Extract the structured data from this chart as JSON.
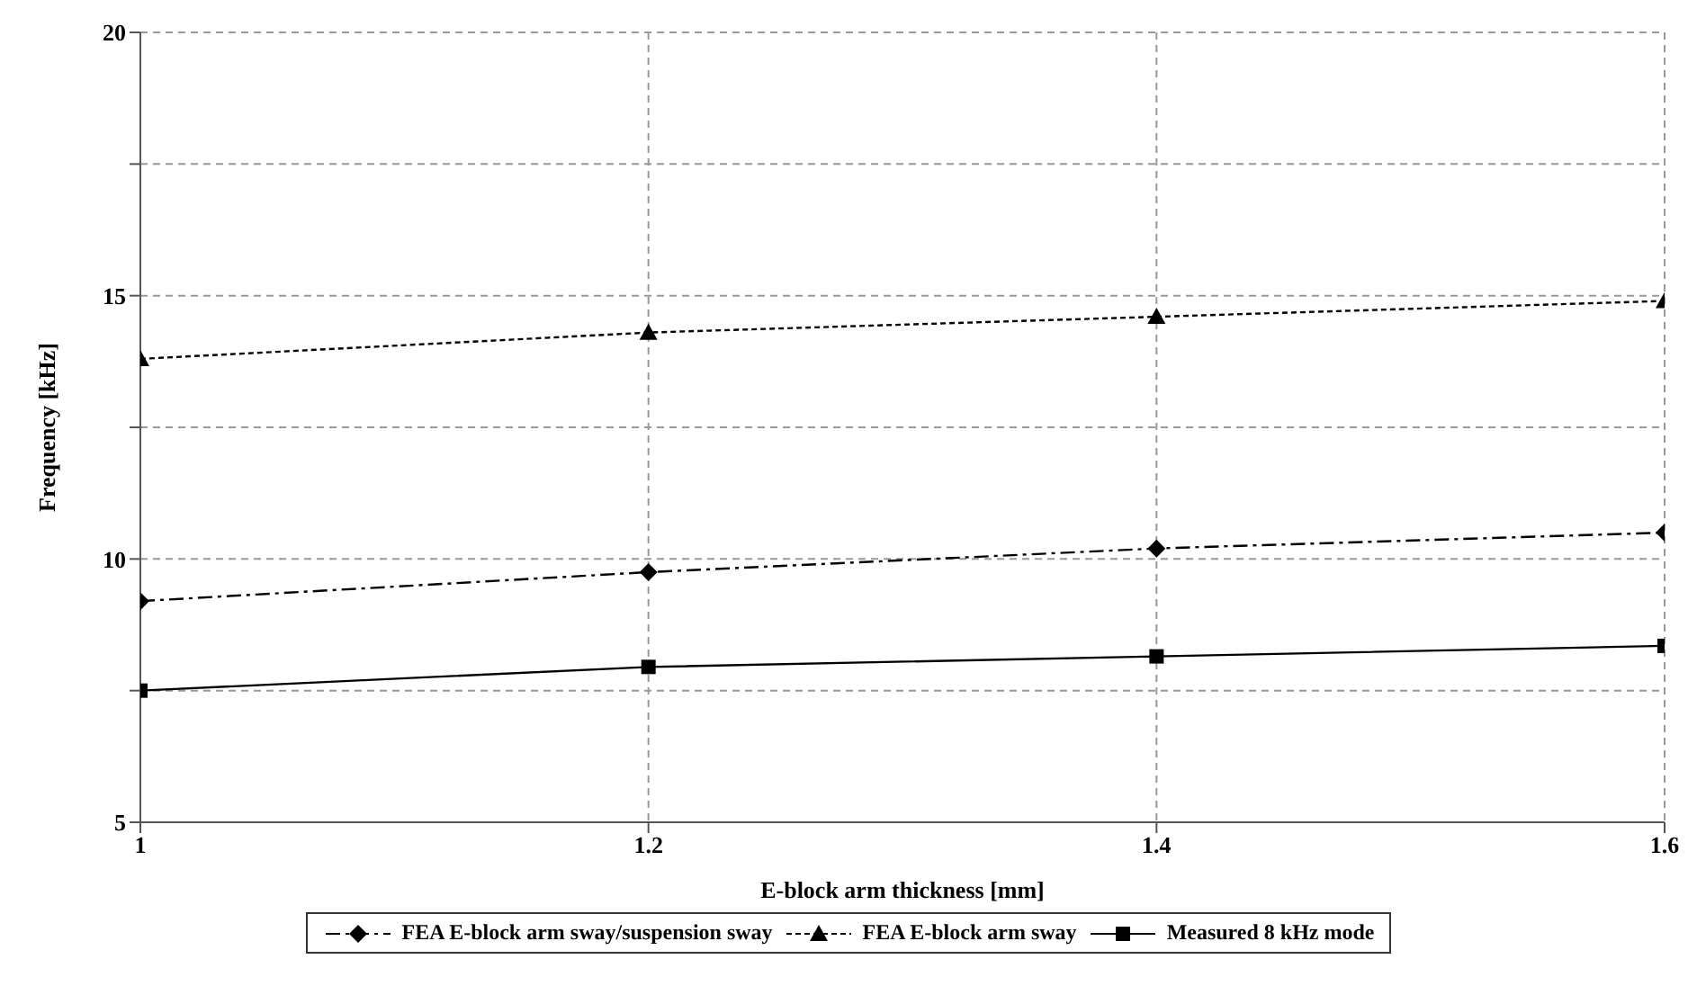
{
  "chart_data": {
    "type": "line",
    "xlabel": "E-block arm thickness [mm]",
    "ylabel": "Frequency [kHz]",
    "x": [
      1,
      1.2,
      1.4,
      1.6
    ],
    "xlim": [
      1,
      1.6
    ],
    "xticks": [
      1,
      1.2,
      1.4,
      1.6
    ],
    "ylim": [
      5,
      20
    ],
    "yticks": [
      5,
      {
        "value": 7.5,
        "label": null
      },
      10,
      {
        "value": 12.5,
        "label": null
      },
      15,
      {
        "value": 17.5,
        "label": null
      },
      20
    ],
    "grid": true,
    "legend": "bottom",
    "series": [
      {
        "name": "FEA E-block arm sway/suspension sway",
        "color": "#000000",
        "values": [
          9.2,
          9.75,
          10.2,
          10.5
        ],
        "marker": "diamond",
        "line_style": "dashed"
      },
      {
        "name": "FEA E-block arm sway",
        "color": "#000000",
        "values": [
          13.8,
          14.3,
          14.6,
          14.9
        ],
        "marker": "triangle",
        "line_style": "dotted"
      },
      {
        "name": "Measured 8 kHz mode",
        "color": "#000000",
        "values": [
          7.5,
          7.95,
          8.15,
          8.35
        ],
        "marker": "square",
        "line_style": "solid"
      }
    ]
  }
}
